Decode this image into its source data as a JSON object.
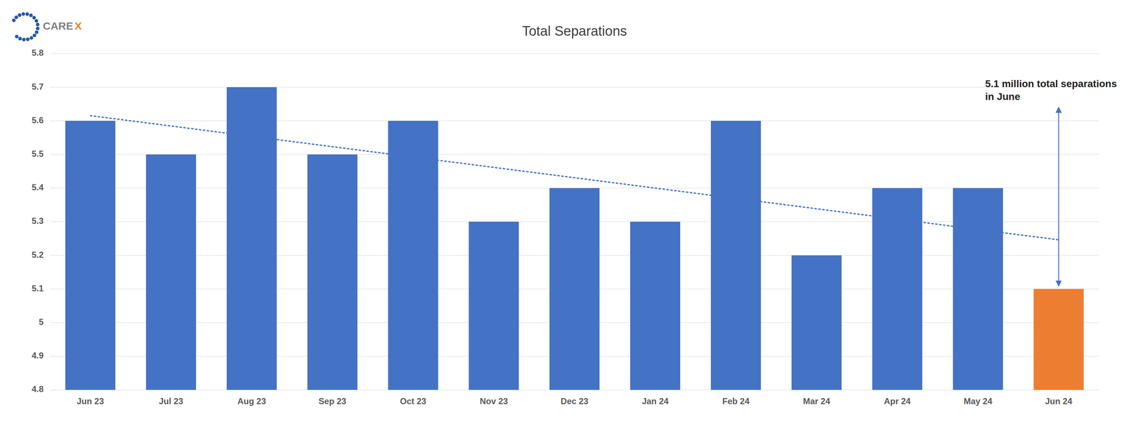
{
  "chart_data": {
    "type": "bar",
    "title": "Total Separations",
    "categories": [
      "Jun 23",
      "Jul 23",
      "Aug 23",
      "Sep 23",
      "Oct 23",
      "Nov 23",
      "Dec 23",
      "Jan 24",
      "Feb 24",
      "Mar 24",
      "Apr 24",
      "May 24",
      "Jun 24"
    ],
    "series": [
      {
        "type": "bar",
        "values": [
          5.6,
          5.5,
          5.7,
          5.5,
          5.6,
          5.3,
          5.4,
          5.3,
          5.6,
          5.2,
          5.4,
          5.4,
          5.1
        ],
        "colors": [
          "#4472C4",
          "#4472C4",
          "#4472C4",
          "#4472C4",
          "#4472C4",
          "#4472C4",
          "#4472C4",
          "#4472C4",
          "#4472C4",
          "#4472C4",
          "#4472C4",
          "#4472C4",
          "#ED7D31"
        ]
      },
      {
        "type": "line",
        "line_style": "dotted",
        "color": "#4472C4",
        "values": [
          5.6154,
          5.5846,
          5.5538,
          5.5231,
          5.4923,
          5.4615,
          5.4308,
          5.4,
          5.3692,
          5.3385,
          5.3077,
          5.2769,
          5.2462
        ]
      }
    ],
    "ylim": [
      4.8,
      5.8
    ],
    "yticks": [
      4.8,
      4.9,
      5,
      5.1,
      5.2,
      5.3,
      5.4,
      5.5,
      5.6,
      5.7,
      5.8
    ],
    "grid": true,
    "annotations": [
      "5.1 million total separations",
      "in June",
      "CARE",
      "X"
    ]
  }
}
